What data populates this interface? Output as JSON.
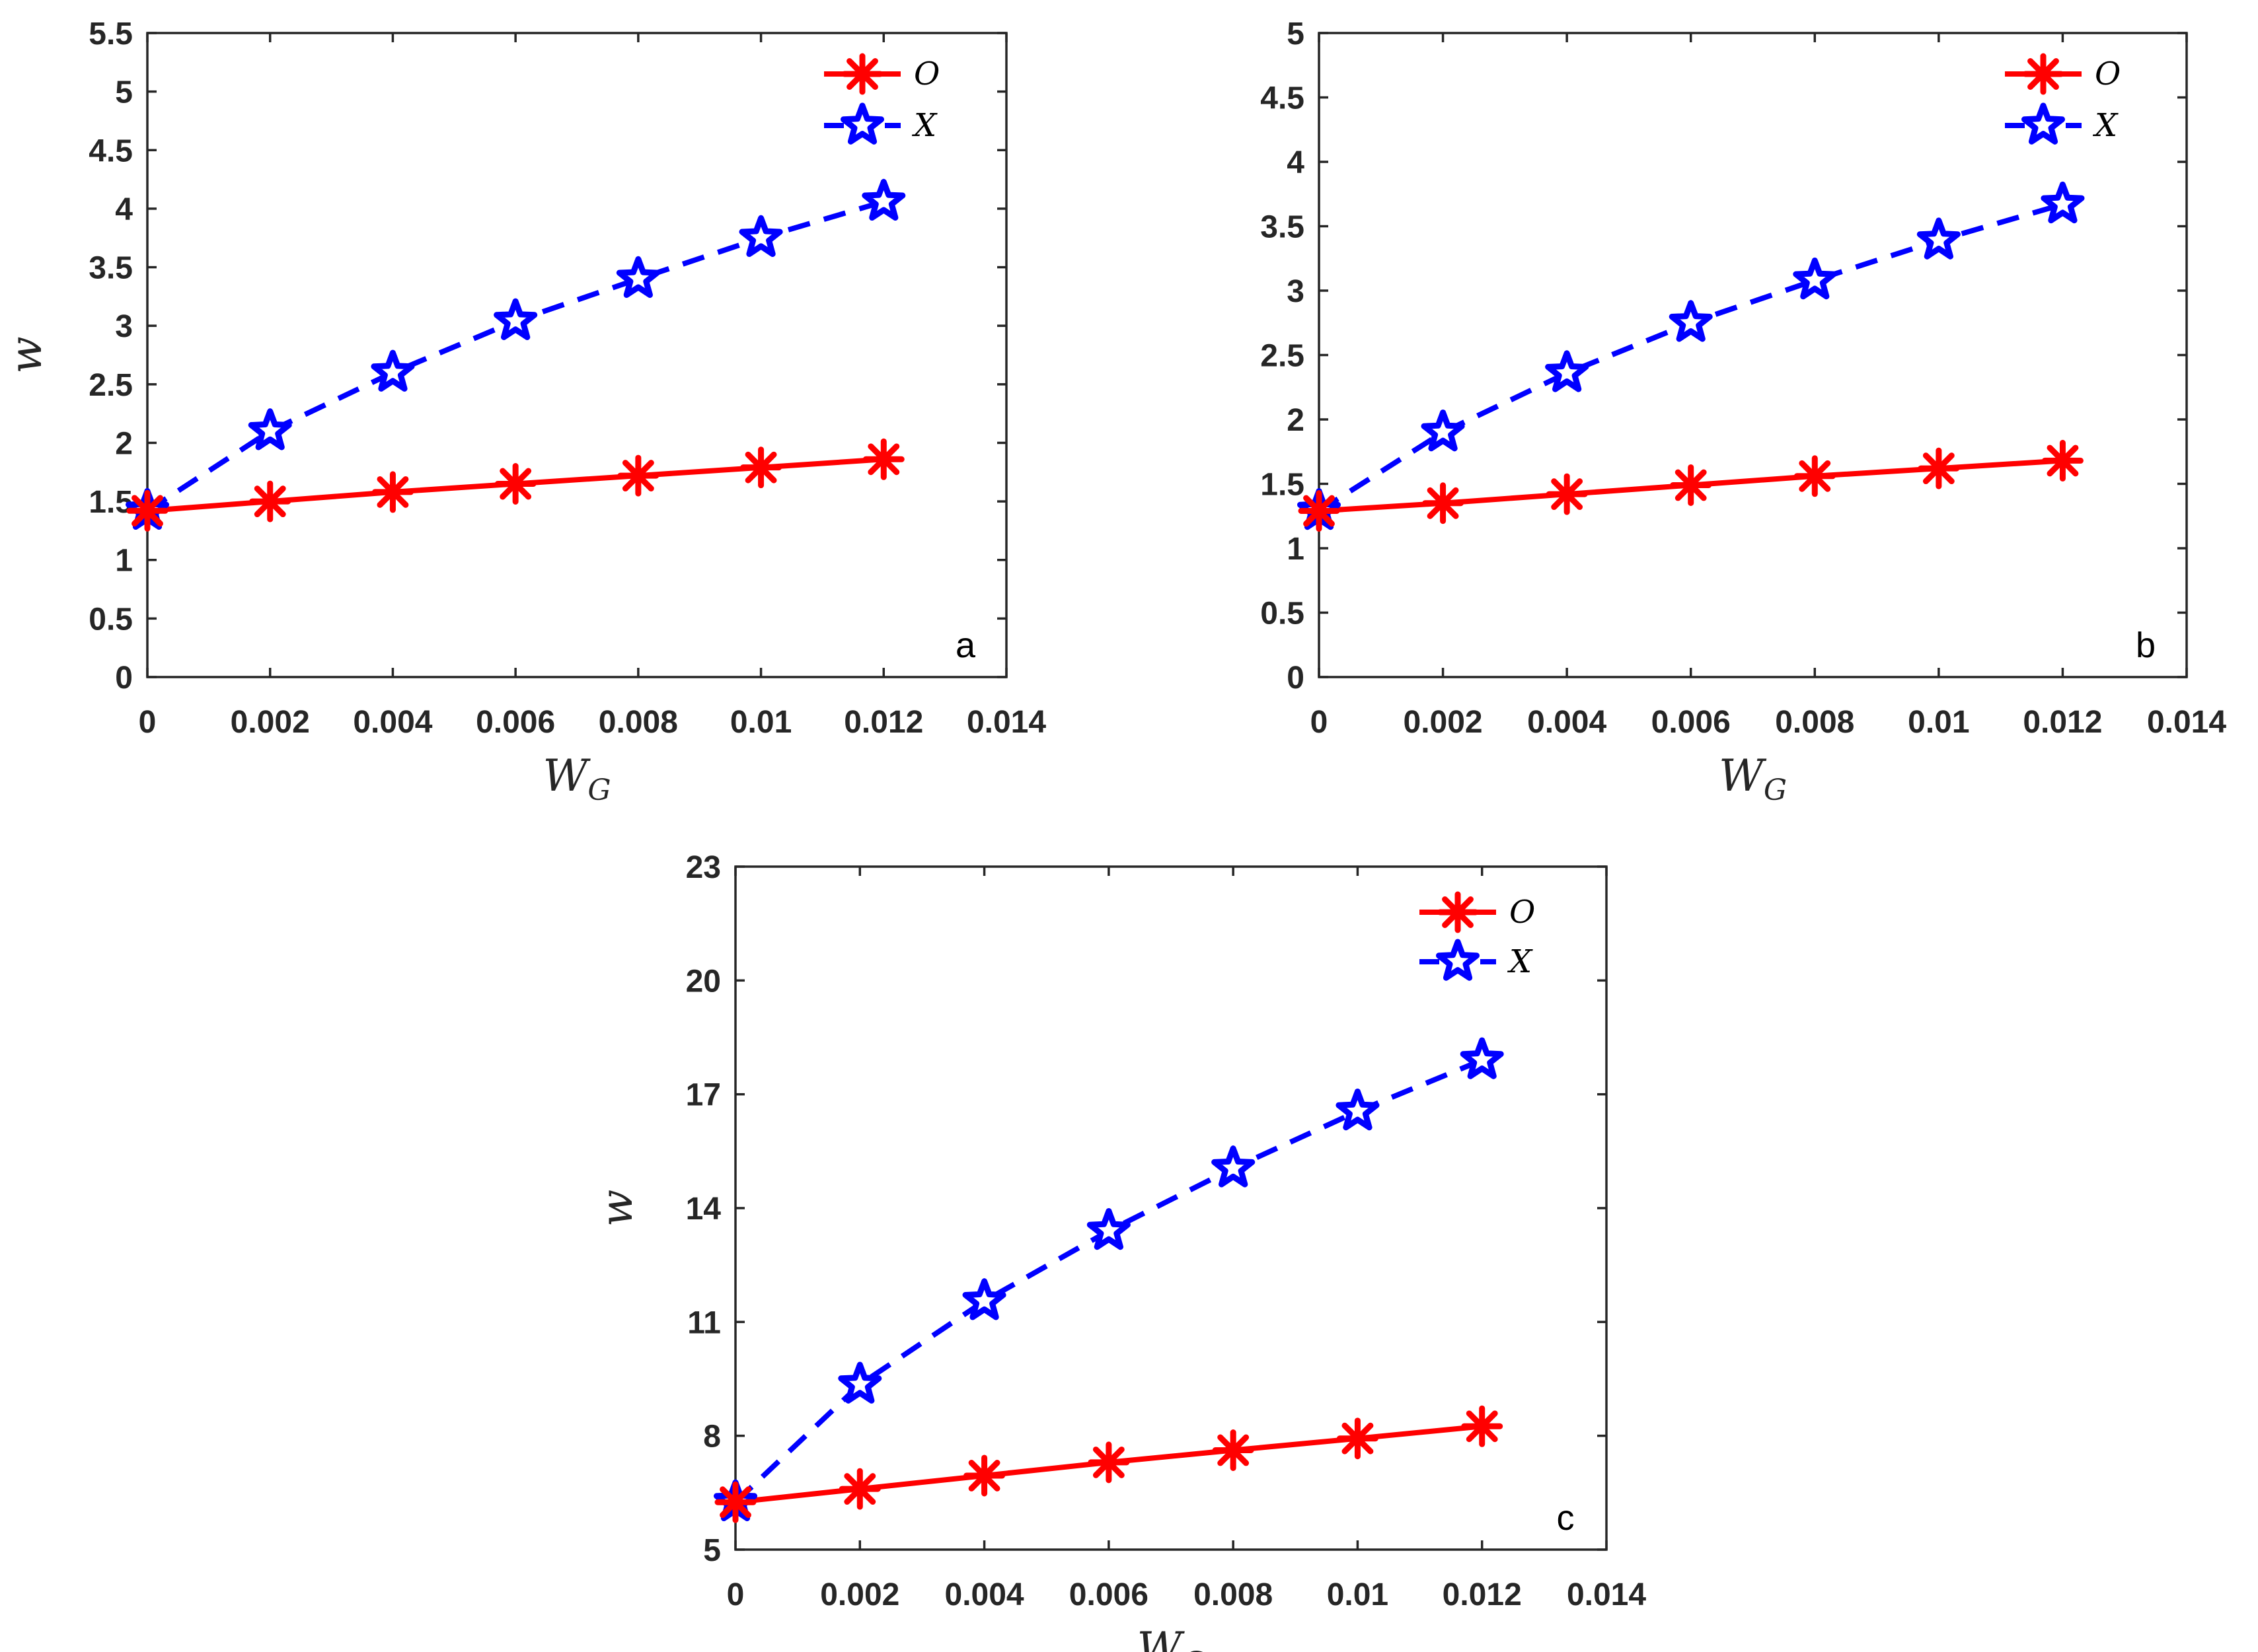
{
  "colors": {
    "series_o": "#ff0000",
    "series_x": "#0000ff",
    "axis": "#262626",
    "background": "#ffffff"
  },
  "chart_data": [
    {
      "type": "line",
      "panel_label": "a",
      "xlabel": "W",
      "xlabel_subscript": "G",
      "ylabel": "w",
      "xlim": [
        0,
        0.014
      ],
      "ylim": [
        0,
        5.5
      ],
      "x_ticks": [
        0,
        0.002,
        0.004,
        0.006,
        0.008,
        0.01,
        0.012,
        0.014
      ],
      "x_tick_labels": [
        "0",
        "0.002",
        "0.004",
        "0.006",
        "0.008",
        "0.01",
        "0.012",
        "0.014"
      ],
      "y_ticks": [
        0,
        0.5,
        1,
        1.5,
        2,
        2.5,
        3,
        3.5,
        4,
        4.5,
        5,
        5.5
      ],
      "y_tick_labels": [
        "0",
        "0.5",
        "1",
        "1.5",
        "2",
        "2.5",
        "3",
        "3.5",
        "4",
        "4.5",
        "5",
        "5.5"
      ],
      "legend_position": "top-right",
      "x": [
        0,
        0.002,
        0.004,
        0.006,
        0.008,
        0.01,
        0.012
      ],
      "series": [
        {
          "name": "O",
          "values": [
            1.42,
            1.5,
            1.58,
            1.65,
            1.72,
            1.79,
            1.86
          ],
          "marker": "asterisk",
          "line": "solid"
        },
        {
          "name": "X",
          "values": [
            1.42,
            2.1,
            2.6,
            3.04,
            3.4,
            3.75,
            4.06
          ],
          "marker": "pentagram",
          "line": "dashed"
        }
      ]
    },
    {
      "type": "line",
      "panel_label": "b",
      "xlabel": "W",
      "xlabel_subscript": "G",
      "ylabel": "",
      "xlim": [
        0,
        0.014
      ],
      "ylim": [
        0,
        5
      ],
      "x_ticks": [
        0,
        0.002,
        0.004,
        0.006,
        0.008,
        0.01,
        0.012,
        0.014
      ],
      "x_tick_labels": [
        "0",
        "0.002",
        "0.004",
        "0.006",
        "0.008",
        "0.01",
        "0.012",
        "0.014"
      ],
      "y_ticks": [
        0,
        0.5,
        1,
        1.5,
        2,
        2.5,
        3,
        3.5,
        4,
        4.5,
        5
      ],
      "y_tick_labels": [
        "0",
        "0.5",
        "1",
        "1.5",
        "2",
        "2.5",
        "3",
        "3.5",
        "4",
        "4.5",
        "5"
      ],
      "legend_position": "top-right",
      "x": [
        0,
        0.002,
        0.004,
        0.006,
        0.008,
        0.01,
        0.012
      ],
      "series": [
        {
          "name": "O",
          "values": [
            1.29,
            1.35,
            1.42,
            1.49,
            1.56,
            1.62,
            1.68
          ],
          "marker": "asterisk",
          "line": "solid"
        },
        {
          "name": "X",
          "values": [
            1.29,
            1.9,
            2.36,
            2.75,
            3.08,
            3.39,
            3.67
          ],
          "marker": "pentagram",
          "line": "dashed"
        }
      ]
    },
    {
      "type": "line",
      "panel_label": "c",
      "xlabel": "W",
      "xlabel_subscript": "G",
      "ylabel": "w",
      "xlim": [
        0,
        0.014
      ],
      "ylim": [
        5,
        23
      ],
      "x_ticks": [
        0,
        0.002,
        0.004,
        0.006,
        0.008,
        0.01,
        0.012,
        0.014
      ],
      "x_tick_labels": [
        "0",
        "0.002",
        "0.004",
        "0.006",
        "0.008",
        "0.01",
        "0.012",
        "0.014"
      ],
      "y_ticks": [
        5,
        8,
        11,
        14,
        17,
        20,
        23
      ],
      "y_tick_labels": [
        "5",
        "8",
        "11",
        "14",
        "17",
        "20",
        "23"
      ],
      "legend_position": "top-right",
      "x": [
        0,
        0.002,
        0.004,
        0.006,
        0.008,
        0.01,
        0.012
      ],
      "series": [
        {
          "name": "O",
          "values": [
            6.25,
            6.6,
            6.95,
            7.3,
            7.62,
            7.93,
            8.25
          ],
          "marker": "asterisk",
          "line": "solid"
        },
        {
          "name": "X",
          "values": [
            6.25,
            9.35,
            11.55,
            13.4,
            15.05,
            16.55,
            17.9
          ],
          "marker": "pentagram",
          "line": "dashed"
        }
      ]
    }
  ]
}
